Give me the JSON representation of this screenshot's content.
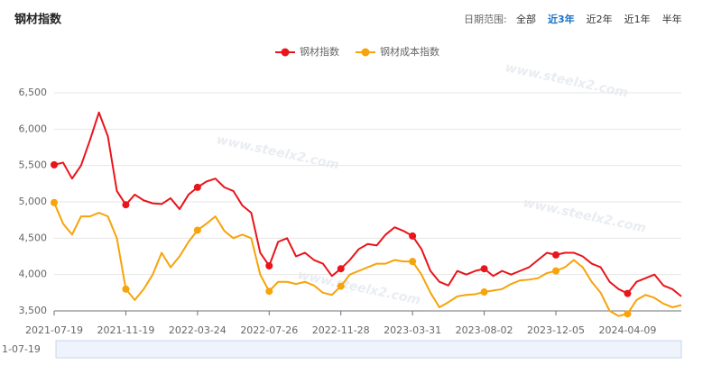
{
  "chart_data": {
    "type": "line",
    "title": "钢材指数",
    "categories": [
      "2021-07-19",
      null,
      null,
      null,
      null,
      null,
      null,
      null,
      "2021-11-19",
      null,
      null,
      null,
      null,
      null,
      null,
      null,
      "2022-03-24",
      null,
      null,
      null,
      null,
      null,
      null,
      null,
      "2022-07-26",
      null,
      null,
      null,
      null,
      null,
      null,
      null,
      "2022-11-28",
      null,
      null,
      null,
      null,
      null,
      null,
      null,
      "2023-03-31",
      null,
      null,
      null,
      null,
      null,
      null,
      null,
      "2023-08-02",
      null,
      null,
      null,
      null,
      null,
      null,
      null,
      "2023-12-05",
      null,
      null,
      null,
      null,
      null,
      null,
      null,
      "2024-04-09",
      null,
      null,
      null,
      null,
      null,
      null
    ],
    "series": [
      {
        "name": "钢材指数",
        "color": "#e8151b",
        "values": [
          5510,
          5540,
          5320,
          5500,
          5850,
          6230,
          5900,
          5150,
          4960,
          5100,
          5020,
          4980,
          4970,
          5050,
          4900,
          5100,
          5200,
          5280,
          5320,
          5200,
          5150,
          4950,
          4850,
          4300,
          4120,
          4450,
          4500,
          4250,
          4300,
          4200,
          4150,
          3980,
          4080,
          4200,
          4350,
          4420,
          4400,
          4550,
          4650,
          4600,
          4530,
          4350,
          4050,
          3900,
          3850,
          4050,
          4000,
          4050,
          4080,
          3980,
          4050,
          4000,
          4050,
          4100,
          4200,
          4300,
          4270,
          4300,
          4300,
          4250,
          4150,
          4100,
          3900,
          3800,
          3740,
          3900,
          3950,
          4000,
          3850,
          3800,
          3700
        ]
      },
      {
        "name": "钢材成本指数",
        "color": "#f7a30a",
        "values": [
          4990,
          4700,
          4550,
          4800,
          4800,
          4850,
          4800,
          4500,
          3800,
          3650,
          3800,
          4000,
          4300,
          4100,
          4250,
          4450,
          4610,
          4700,
          4800,
          4600,
          4500,
          4550,
          4500,
          4000,
          3770,
          3900,
          3900,
          3870,
          3900,
          3850,
          3750,
          3720,
          3840,
          4000,
          4050,
          4100,
          4150,
          4150,
          4200,
          4180,
          4180,
          4000,
          3750,
          3550,
          3620,
          3700,
          3720,
          3730,
          3760,
          3780,
          3800,
          3870,
          3920,
          3930,
          3950,
          4020,
          4050,
          4100,
          4200,
          4100,
          3900,
          3750,
          3500,
          3430,
          3460,
          3650,
          3720,
          3680,
          3600,
          3550,
          3580
        ]
      }
    ],
    "ylim": [
      3500,
      6500
    ],
    "yticks": [
      {
        "value": 3500,
        "label": "3,500"
      },
      {
        "value": 4000,
        "label": "4,000"
      },
      {
        "value": 4500,
        "label": "4,500"
      },
      {
        "value": 5000,
        "label": "5,000"
      },
      {
        "value": 5500,
        "label": "5,500"
      },
      {
        "value": 6000,
        "label": "6,000"
      },
      {
        "value": 6500,
        "label": "6,500"
      }
    ],
    "grid": true,
    "legend": "top"
  },
  "date_range": {
    "label": "日期范围:",
    "options": [
      "全部",
      "近3年",
      "近2年",
      "近1年",
      "半年"
    ],
    "active": 1
  },
  "zoom_slider": {
    "start_label": "1-07-19"
  },
  "watermark": "www.steelx2.com"
}
